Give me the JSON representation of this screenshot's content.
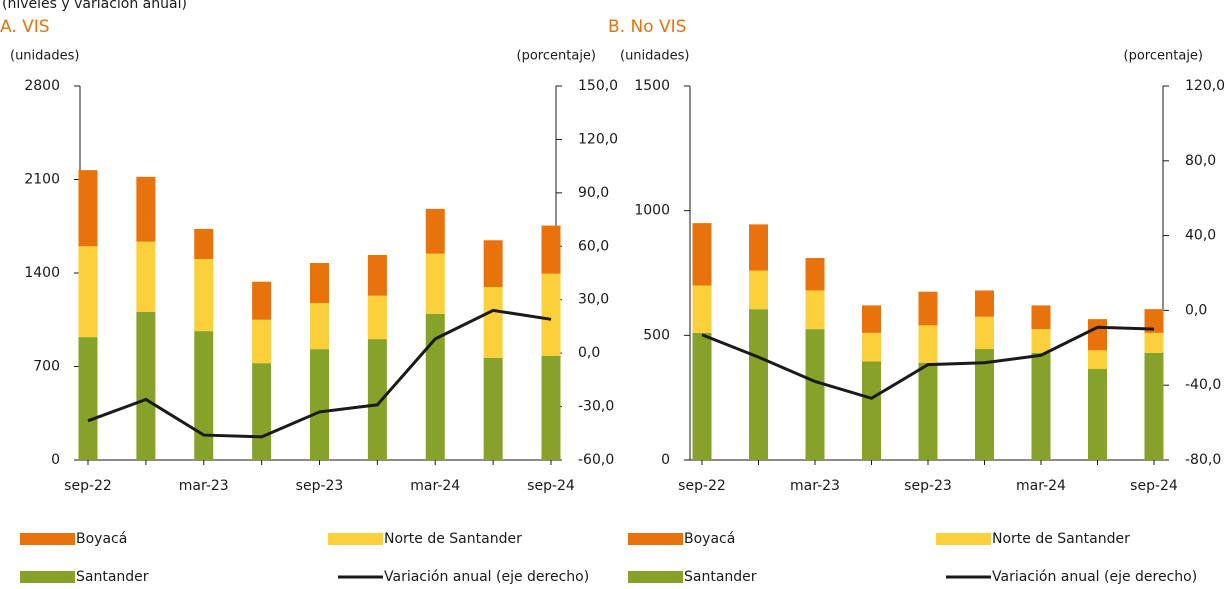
{
  "page_subtitle": "(niveles y variación anual)",
  "chart_data": [
    {
      "type": "bar",
      "title": "A. VIS",
      "ylabel": "(unidades)",
      "y2label": "(porcentaje)",
      "categories": [
        "sep-22",
        null,
        "mar-23",
        null,
        "sep-23",
        null,
        "mar-24",
        null,
        "sep-24"
      ],
      "stacked": true,
      "series": [
        {
          "name": "Santander",
          "color": "#87a22a",
          "values": [
            920,
            1110,
            965,
            725,
            830,
            905,
            1095,
            765,
            780
          ]
        },
        {
          "name": "Norte de Santander",
          "color": "#fcd03a",
          "values": [
            680,
            525,
            540,
            325,
            345,
            325,
            450,
            530,
            615
          ]
        },
        {
          "name": "Boyacá",
          "color": "#e8720c",
          "values": [
            570,
            485,
            225,
            285,
            300,
            305,
            335,
            350,
            360
          ]
        },
        {
          "name": "Variación anual (eje derecho)",
          "color": "#1a1a1a",
          "type": "line",
          "axis": "y2",
          "values": [
            -38,
            -26,
            -46,
            -47,
            -33,
            -29,
            8,
            24,
            19
          ]
        }
      ],
      "ylim": [
        0,
        2800
      ],
      "yticks": [
        0,
        700,
        1400,
        2100,
        2800
      ],
      "y2lim": [
        -60,
        150
      ],
      "y2ticks": [
        {
          "value": -60,
          "label": "-60,0"
        },
        {
          "value": -30,
          "label": "-30,0"
        },
        {
          "value": 0,
          "label": "0,0"
        },
        {
          "value": 30,
          "label": "30,0"
        },
        {
          "value": 60,
          "label": "60,0"
        },
        {
          "value": 90,
          "label": "90,0"
        },
        {
          "value": 120,
          "label": "120,0"
        },
        {
          "value": 150,
          "label": "150,0"
        }
      ]
    },
    {
      "type": "bar",
      "title": "B. No VIS",
      "ylabel": "(unidades)",
      "y2label": "(porcentaje)",
      "categories": [
        "sep-22",
        null,
        "mar-23",
        null,
        "sep-23",
        null,
        "mar-24",
        null,
        "sep-24"
      ],
      "stacked": true,
      "series": [
        {
          "name": "Santander",
          "color": "#87a22a",
          "values": [
            510,
            605,
            525,
            395,
            390,
            445,
            430,
            365,
            430
          ]
        },
        {
          "name": "Norte de Santander",
          "color": "#fcd03a",
          "values": [
            190,
            155,
            155,
            115,
            150,
            130,
            95,
            75,
            80
          ]
        },
        {
          "name": "Boyacá",
          "color": "#e8720c",
          "values": [
            250,
            185,
            130,
            110,
            135,
            105,
            95,
            125,
            95
          ]
        },
        {
          "name": "Variación anual (eje derecho)",
          "color": "#1a1a1a",
          "type": "line",
          "axis": "y2",
          "values": [
            -13,
            -25,
            -38,
            -47,
            -29,
            -28,
            -24,
            -9,
            -10
          ]
        }
      ],
      "ylim": [
        0,
        1500
      ],
      "yticks": [
        0,
        500,
        1000,
        1500
      ],
      "y2lim": [
        -80,
        120
      ],
      "y2ticks": [
        {
          "value": -80,
          "label": "-80,0"
        },
        {
          "value": -40,
          "label": "-40,0"
        },
        {
          "value": 0,
          "label": "0,0"
        },
        {
          "value": 40,
          "label": "40,0"
        },
        {
          "value": 80,
          "label": "80,0"
        },
        {
          "value": 120,
          "label": "120,0"
        }
      ]
    }
  ]
}
